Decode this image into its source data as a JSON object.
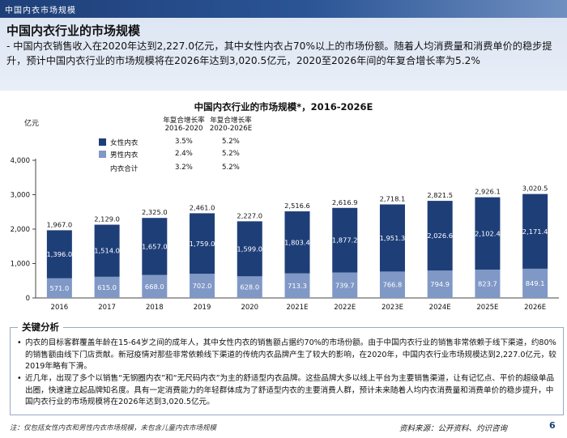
{
  "header": {
    "label": "中国内衣市场规模"
  },
  "summary": {
    "heading": "中国内衣行业的市场规模",
    "body": "- 中国内衣销售收入在2020年达到2,227.0亿元，其中女性内衣占70%以上的市场份额。随着人均消费量和消费单价的稳步提升，预计中国内衣行业的市场规模将在2026年达到3,020.5亿元，2020至2026年间的年复合增长率为5.2%"
  },
  "chart_data": {
    "type": "bar",
    "stacked": true,
    "title": "中国内衣行业的市场规模*，2016-2026E",
    "ylabel": "亿元",
    "ylim": [
      0,
      4000
    ],
    "yticks": [
      0,
      1000,
      2000,
      3000,
      4000
    ],
    "ytick_labels": [
      "0",
      "1,000",
      "2,000",
      "3,000",
      "4,000"
    ],
    "categories": [
      "2016",
      "2017",
      "2018",
      "2019",
      "2020",
      "2021E",
      "2022E",
      "2023E",
      "2024E",
      "2025E",
      "2026E"
    ],
    "series": [
      {
        "name": "男性内衣",
        "color": "#8098c6",
        "values": [
          571.0,
          615.0,
          668.0,
          702.0,
          628.0,
          713.3,
          739.7,
          766.8,
          794.9,
          823.7,
          849.1
        ],
        "labels": [
          "571.0",
          "615.0",
          "668.0",
          "702.0",
          "628.0",
          "713.3",
          "739.7",
          "766.8",
          "794.9",
          "823.7",
          "849.1"
        ]
      },
      {
        "name": "女性内衣",
        "color": "#1e3e78",
        "values": [
          1396.0,
          1514.0,
          1657.0,
          1759.0,
          1599.0,
          1803.4,
          1877.2,
          1951.3,
          2026.6,
          2102.4,
          2171.4
        ],
        "labels": [
          "1,396.0",
          "1,514.0",
          "1,657.0",
          "1,759.0",
          "1,599.0",
          "1,803.4",
          "1,877.2",
          "1,951.3",
          "2,026.6",
          "2,102.4",
          "2,171.4"
        ]
      }
    ],
    "totals": [
      1967.0,
      2129.0,
      2325.0,
      2461.0,
      2227.0,
      2516.6,
      2616.9,
      2718.1,
      2821.5,
      2926.1,
      3020.5
    ],
    "total_labels": [
      "1,967.0",
      "2,129.0",
      "2,325.0",
      "2,461.0",
      "2,227.0",
      "2,516.6",
      "2,616.9",
      "2,718.1",
      "2,821.5",
      "2,926.1",
      "3,020.5"
    ],
    "grid": false,
    "legend_position": "top-left"
  },
  "cagr_table": {
    "col1_head": "年复合增长率\n2016-2020",
    "col2_head": "年复合增长率\n2020-2026E",
    "rows": [
      {
        "name": "女性内衣",
        "v1": "3.5%",
        "v2": "5.2%",
        "color": "#1e3e78"
      },
      {
        "name": "男性内衣",
        "v1": "2.4%",
        "v2": "5.2%",
        "color": "#8098c6"
      },
      {
        "name": "内衣合计",
        "v1": "3.2%",
        "v2": "5.2%",
        "color": ""
      }
    ]
  },
  "analysis": {
    "title": "关键分析",
    "bullet": "•",
    "items": [
      "内衣的目标客群覆盖年龄在15-64岁之间的成年人，其中女性内衣的销售额占据约70%的市场份额。由于中国内衣行业的销售非常依赖于线下渠道，约80%的销售额由线下门店贡献。新冠疫情对那些非常依赖线下渠道的传统内衣品牌产生了较大的影响，在2020年，中国内衣行业市场规模达到2,227.0亿元，较2019年略有下滑。",
      "近几年，出现了多个以销售“无钢圈内衣”和“无尺码内衣”为主的舒适型内衣品牌。这些品牌大多以线上平台为主要销售渠道，让有记忆点、平价的超级单品出圈，快速建立起品牌知名度。具有一定消费能力的年轻群体成为了舒适型内衣的主要消费人群，预计未来随着人均内衣消费量和消费单价的稳步提升，中国内衣行业的市场规模将在2026年达到3,020.5亿元。"
    ]
  },
  "footer": {
    "note": "注：仅包括女性内衣和男性内衣市场规模，未包含儿童内衣市场规模",
    "source": "资料来源：公开资料、灼识咨询",
    "page": "6"
  }
}
